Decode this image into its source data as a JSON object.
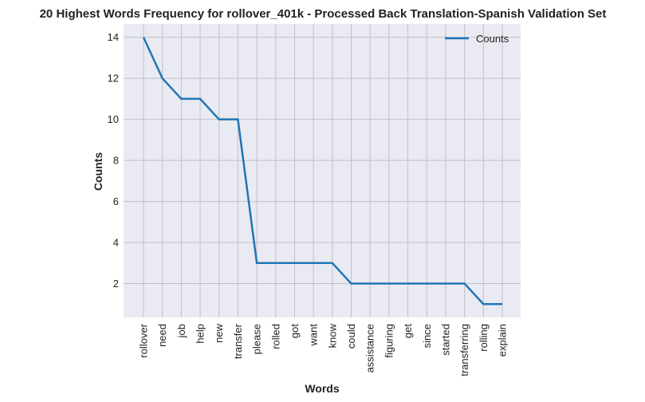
{
  "chart_data": {
    "type": "line",
    "title": "20 Highest Words Frequency for rollover_401k - Processed Back Translation-Spanish Validation Set",
    "xlabel": "Words",
    "ylabel": "Counts",
    "categories": [
      "rollover",
      "need",
      "job",
      "help",
      "new",
      "transfer",
      "please",
      "rolled",
      "got",
      "want",
      "know",
      "could",
      "assistance",
      "figuring",
      "get",
      "since",
      "started",
      "transferring",
      "rolling",
      "explain"
    ],
    "series": [
      {
        "name": "Counts",
        "values": [
          14,
          12,
          11,
          11,
          10,
          10,
          3,
          3,
          3,
          3,
          3,
          2,
          2,
          2,
          2,
          2,
          2,
          2,
          1,
          1
        ]
      }
    ],
    "ylim": [
      0.35,
      14.65
    ],
    "yticks": [
      2,
      4,
      6,
      8,
      10,
      12,
      14
    ],
    "grid": true,
    "legend": "top-right",
    "colors": {
      "line": "#1f77b4",
      "plot_bg": "#eaeaf2",
      "grid": "#c0c0c8"
    }
  }
}
